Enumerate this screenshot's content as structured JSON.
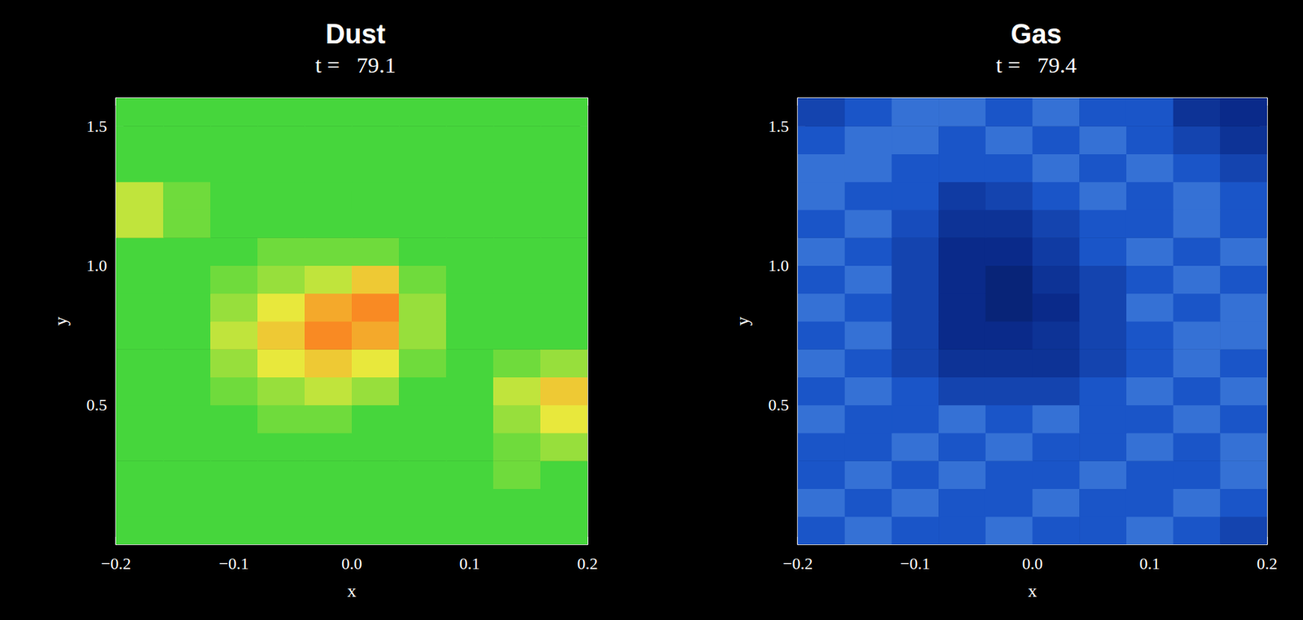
{
  "chart_data": [
    {
      "type": "heatmap",
      "title": "Dust",
      "subtitle": "t =   79.1",
      "x_label": "x",
      "y_label": "y",
      "xlim": [
        -0.2,
        0.2
      ],
      "ylim": [
        0,
        1.6
      ],
      "xticks": [
        {
          "value": -0.2,
          "label": "−0.2"
        },
        {
          "value": -0.1,
          "label": "−0.1"
        },
        {
          "value": 0,
          "label": "0.0"
        },
        {
          "value": 0.1,
          "label": "0.1"
        },
        {
          "value": 0.2,
          "label": "0.2"
        }
      ],
      "yticks": [
        0.5,
        {
          "value": 1,
          "label": "1.0"
        },
        1.5
      ],
      "x_bins": [
        -0.2,
        -0.16,
        -0.12,
        -0.08,
        -0.04,
        0,
        0.04,
        0.08,
        0.12,
        0.16,
        0.2
      ],
      "y_bins": [
        0,
        0.1,
        0.2,
        0.3,
        0.4,
        0.5,
        0.6,
        0.7,
        0.8,
        0.9,
        1.0,
        1.1,
        1.2,
        1.3,
        1.4,
        1.5,
        1.6
      ],
      "zlim": [
        0,
        10
      ],
      "cells": [
        [
          4,
          4,
          4,
          4,
          4,
          4,
          4,
          4,
          4,
          4
        ],
        [
          4,
          4,
          4,
          4,
          4,
          4,
          4,
          4,
          4,
          4
        ],
        [
          4,
          4,
          4,
          4,
          4,
          4,
          4,
          4,
          4.5,
          4
        ],
        [
          4,
          4,
          4,
          4,
          4,
          4,
          4,
          4,
          4.5,
          5
        ],
        [
          4,
          4,
          4,
          4.5,
          4.5,
          4,
          4,
          4,
          5,
          6
        ],
        [
          4,
          4,
          4.5,
          5,
          5.5,
          5,
          4,
          4,
          5.5,
          6.5
        ],
        [
          4,
          4,
          5,
          6,
          6.5,
          6,
          4.5,
          4,
          4.5,
          5
        ],
        [
          4,
          4,
          5.5,
          6.5,
          7.5,
          7,
          5,
          4,
          4,
          4
        ],
        [
          4,
          4,
          5,
          6,
          7,
          7.5,
          5,
          4,
          4,
          4
        ],
        [
          4,
          4,
          4.5,
          5,
          5.5,
          6.5,
          4.5,
          4,
          4,
          4
        ],
        [
          4,
          4,
          4,
          4.5,
          4.5,
          4.5,
          4,
          4,
          4,
          4
        ],
        [
          5.5,
          4.5,
          4,
          4,
          4,
          4,
          4,
          4,
          4,
          4
        ],
        [
          5.5,
          4.5,
          4,
          4,
          4,
          4,
          4,
          4,
          4,
          4
        ],
        [
          4,
          4,
          4,
          4,
          4,
          4,
          4,
          4,
          4,
          4
        ],
        [
          4,
          4,
          4,
          4,
          4,
          4,
          4,
          4,
          4,
          4
        ],
        [
          4,
          4,
          4,
          4,
          4,
          4,
          4,
          4,
          4,
          4
        ]
      ]
    },
    {
      "type": "heatmap",
      "title": "Gas",
      "subtitle": "t =   79.4",
      "x_label": "x",
      "y_label": "y",
      "xlim": [
        -0.2,
        0.2
      ],
      "ylim": [
        0,
        1.6
      ],
      "xticks": [
        {
          "value": -0.2,
          "label": "−0.2"
        },
        {
          "value": -0.1,
          "label": "−0.1"
        },
        {
          "value": 0,
          "label": "0.0"
        },
        {
          "value": 0.1,
          "label": "0.1"
        },
        {
          "value": 0.2,
          "label": "0.2"
        }
      ],
      "yticks": [
        0.5,
        {
          "value": 1,
          "label": "1.0"
        },
        1.5
      ],
      "x_bins": [
        -0.2,
        -0.16,
        -0.12,
        -0.08,
        -0.04,
        0,
        0.04,
        0.08,
        0.12,
        0.16,
        0.2
      ],
      "y_bins": [
        0,
        0.1,
        0.2,
        0.3,
        0.4,
        0.5,
        0.6,
        0.7,
        0.8,
        0.9,
        1.0,
        1.1,
        1.2,
        1.3,
        1.4,
        1.5,
        1.6
      ],
      "zlim": [
        0,
        10
      ],
      "cells": [
        [
          5,
          6,
          5,
          5,
          6,
          5,
          5,
          6,
          5,
          4
        ],
        [
          6,
          5,
          6,
          5,
          5,
          6,
          5,
          5,
          6,
          5
        ],
        [
          5,
          6,
          5,
          6,
          5,
          5,
          6,
          5,
          5,
          6
        ],
        [
          5,
          5,
          6,
          5,
          6,
          5,
          5,
          6,
          5,
          6
        ],
        [
          6,
          5,
          5,
          6,
          5,
          6,
          5,
          5,
          6,
          5
        ],
        [
          5,
          6,
          5,
          4,
          4,
          4,
          5,
          6,
          5,
          6
        ],
        [
          6,
          5,
          4,
          3,
          3,
          3,
          4,
          5,
          6,
          5
        ],
        [
          5,
          6,
          4,
          2.5,
          2.5,
          3,
          4,
          5,
          6,
          6
        ],
        [
          6,
          5,
          4,
          2.5,
          2,
          2.5,
          4,
          6,
          5,
          6
        ],
        [
          5,
          6,
          4,
          2.5,
          2,
          3,
          4,
          5,
          6,
          5
        ],
        [
          6,
          5,
          4,
          2.5,
          2.5,
          3.5,
          5,
          6,
          5,
          6
        ],
        [
          5,
          6,
          4.5,
          3,
          3,
          4,
          5,
          5,
          6,
          5
        ],
        [
          6,
          5,
          5,
          3.5,
          4,
          5,
          6,
          5,
          6,
          5
        ],
        [
          6,
          6,
          5,
          5,
          5,
          6,
          5,
          6,
          5,
          4
        ],
        [
          5,
          6,
          6,
          5,
          6,
          5,
          6,
          5,
          4,
          3
        ],
        [
          4,
          5,
          6,
          6,
          5,
          6,
          5,
          5,
          3,
          2.5
        ]
      ]
    }
  ]
}
